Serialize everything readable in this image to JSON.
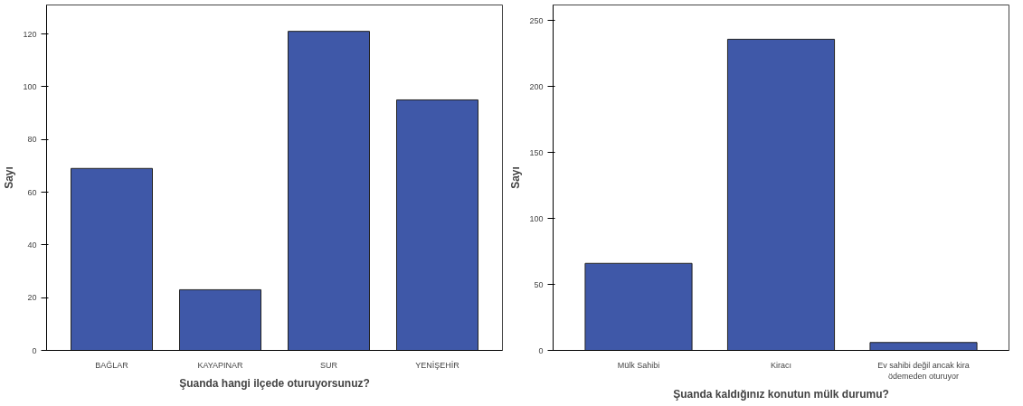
{
  "chart_data": [
    {
      "type": "bar",
      "xlabel": "Şuanda hangi ilçede oturuyorsunuz?",
      "ylabel": "Sayı",
      "categories": [
        "BAĞLAR",
        "KAYAPINAR",
        "SUR",
        "YENİŞEHİR"
      ],
      "values": [
        69,
        23,
        121,
        95
      ],
      "color": "#3f58a8",
      "ylim": [
        0,
        131
      ],
      "yticks": [
        0,
        20,
        40,
        60,
        80,
        100,
        120
      ],
      "grid": false
    },
    {
      "type": "bar",
      "xlabel": "Şuanda kaldığınız konutun mülk durumu?",
      "ylabel": "Sayı",
      "categories": [
        "Mülk Sahibi",
        "Kiracı",
        "Ev sahibi değil ancak kira\nödemeden oturuyor"
      ],
      "values": [
        66,
        236,
        6
      ],
      "color": "#3f58a8",
      "ylim": [
        0,
        262
      ],
      "yticks": [
        0,
        50,
        100,
        150,
        200,
        250
      ],
      "grid": false
    }
  ]
}
